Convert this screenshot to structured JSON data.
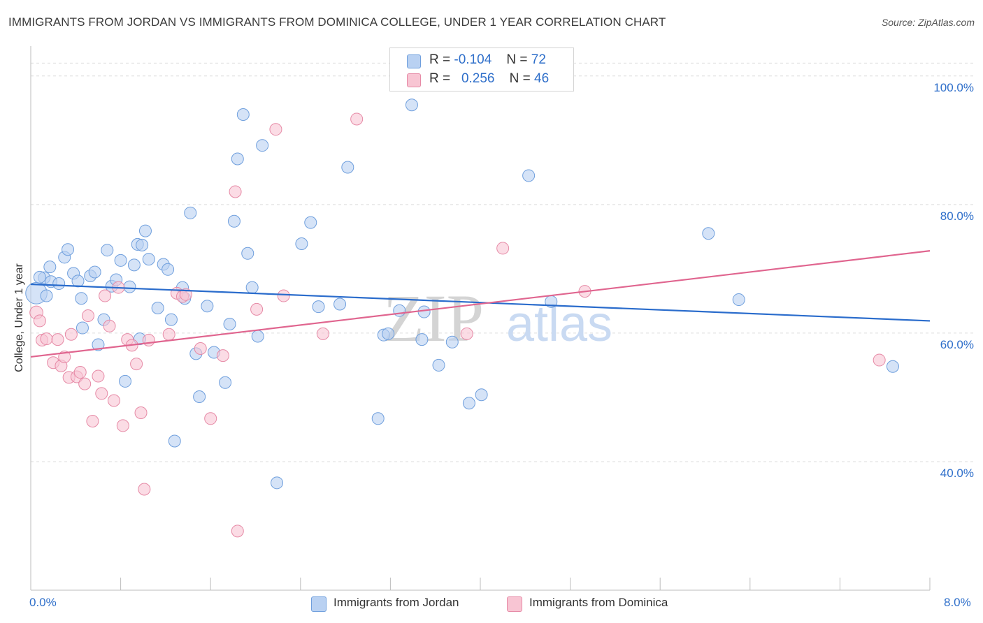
{
  "header": {
    "title": "IMMIGRANTS FROM JORDAN VS IMMIGRANTS FROM DOMINICA COLLEGE, UNDER 1 YEAR CORRELATION CHART",
    "source": "Source: ZipAtlas.com"
  },
  "legend_top": {
    "rows": [
      {
        "r_label": "R =",
        "r_value": "-0.104",
        "n_label": "N =",
        "n_value": "72"
      },
      {
        "r_label": "R =",
        "r_value": "0.256",
        "n_label": "N =",
        "n_value": "46"
      }
    ]
  },
  "watermark": {
    "zip": "ZIP",
    "atlas": "atlas"
  },
  "colors": {
    "jordan_fill": "#b9d1f2",
    "jordan_stroke": "#6f9fdd",
    "jordan_line": "#2a6ccc",
    "dominica_fill": "#f8c5d3",
    "dominica_stroke": "#e68aa6",
    "dominica_line": "#e0658f",
    "axis_label": "#2f6fca",
    "grid": "#dcdcdc"
  },
  "chart_data": {
    "type": "scatter",
    "title": "IMMIGRANTS FROM JORDAN VS IMMIGRANTS FROM DOMINICA COLLEGE, UNDER 1 YEAR CORRELATION CHART",
    "xlabel": "",
    "ylabel": "College, Under 1 year",
    "xlim": [
      0,
      8
    ],
    "ylim": [
      20,
      104
    ],
    "x_tick_labels": [
      "0.0%",
      "8.0%"
    ],
    "y_ticks": [
      40,
      60,
      80,
      100
    ],
    "y_tick_labels": [
      "40.0%",
      "60.0%",
      "80.0%",
      "100.0%"
    ],
    "grid": true,
    "legend_position": "bottom",
    "series": [
      {
        "name": "Immigrants from Jordan",
        "trend": [
          [
            0,
            67.6
          ],
          [
            8,
            61.9
          ]
        ],
        "points": [
          [
            0.05,
            66.2,
            1.8
          ],
          [
            0.12,
            68.6,
            1
          ],
          [
            0.17,
            70.3,
            1
          ],
          [
            0.18,
            68.0,
            1
          ],
          [
            0.25,
            67.7,
            1
          ],
          [
            0.3,
            71.8,
            1
          ],
          [
            0.33,
            73.0,
            1
          ],
          [
            0.38,
            69.3,
            1
          ],
          [
            0.42,
            68.1,
            1
          ],
          [
            0.45,
            65.4,
            1
          ],
          [
            0.46,
            60.8,
            1
          ],
          [
            0.53,
            68.9,
            1
          ],
          [
            0.57,
            69.5,
            1
          ],
          [
            0.6,
            58.2,
            1
          ],
          [
            0.65,
            62.1,
            1
          ],
          [
            0.68,
            72.9,
            1
          ],
          [
            0.72,
            67.3,
            1
          ],
          [
            0.76,
            68.3,
            1
          ],
          [
            0.8,
            71.3,
            1
          ],
          [
            0.84,
            52.5,
            1
          ],
          [
            0.88,
            67.2,
            1
          ],
          [
            0.92,
            70.6,
            1
          ],
          [
            0.95,
            73.8,
            1
          ],
          [
            0.97,
            59.1,
            1
          ],
          [
            0.99,
            73.7,
            1
          ],
          [
            1.02,
            75.9,
            1
          ],
          [
            1.05,
            71.5,
            1
          ],
          [
            1.13,
            63.9,
            1
          ],
          [
            1.18,
            70.7,
            1
          ],
          [
            1.22,
            69.9,
            1
          ],
          [
            1.25,
            62.1,
            1
          ],
          [
            1.28,
            43.2,
            1
          ],
          [
            1.35,
            67.1,
            1
          ],
          [
            1.37,
            65.4,
            1
          ],
          [
            1.42,
            78.7,
            1
          ],
          [
            1.47,
            56.8,
            1
          ],
          [
            1.5,
            50.1,
            1
          ],
          [
            1.57,
            64.2,
            1
          ],
          [
            1.63,
            57.0,
            1
          ],
          [
            1.73,
            52.3,
            1
          ],
          [
            1.77,
            61.4,
            1
          ],
          [
            1.81,
            77.4,
            1
          ],
          [
            1.84,
            87.1,
            1
          ],
          [
            1.89,
            94.0,
            1
          ],
          [
            1.93,
            72.4,
            1
          ],
          [
            1.97,
            67.1,
            1
          ],
          [
            2.02,
            59.5,
            1
          ],
          [
            2.06,
            89.2,
            1
          ],
          [
            2.19,
            36.7,
            1
          ],
          [
            2.41,
            73.9,
            1
          ],
          [
            2.49,
            77.2,
            1
          ],
          [
            2.56,
            64.1,
            1
          ],
          [
            2.75,
            64.5,
            1
          ],
          [
            2.82,
            85.8,
            1
          ],
          [
            3.09,
            46.7,
            1
          ],
          [
            3.14,
            59.7,
            1
          ],
          [
            3.18,
            59.9,
            1
          ],
          [
            3.28,
            63.5,
            1
          ],
          [
            3.39,
            95.5,
            1
          ],
          [
            3.48,
            59.0,
            1
          ],
          [
            3.5,
            63.3,
            1
          ],
          [
            3.63,
            55.0,
            1
          ],
          [
            3.75,
            58.6,
            1
          ],
          [
            3.9,
            49.1,
            1
          ],
          [
            4.01,
            50.4,
            1
          ],
          [
            4.43,
            84.5,
            1
          ],
          [
            4.63,
            64.9,
            1
          ],
          [
            6.03,
            75.5,
            1
          ],
          [
            6.3,
            65.2,
            1
          ],
          [
            7.67,
            54.8,
            1
          ],
          [
            0.08,
            68.7,
            1
          ],
          [
            0.14,
            65.8,
            1
          ]
        ]
      },
      {
        "name": "Immigrants from Dominica",
        "trend": [
          [
            0,
            56.3
          ],
          [
            8,
            72.8
          ]
        ],
        "points": [
          [
            0.05,
            63.2,
            1.1
          ],
          [
            0.08,
            61.9,
            1
          ],
          [
            0.1,
            58.9,
            1
          ],
          [
            0.14,
            59.1,
            1
          ],
          [
            0.2,
            55.4,
            1
          ],
          [
            0.24,
            59.0,
            1
          ],
          [
            0.27,
            54.9,
            1
          ],
          [
            0.3,
            56.3,
            1
          ],
          [
            0.34,
            53.1,
            1
          ],
          [
            0.36,
            59.8,
            1
          ],
          [
            0.41,
            53.2,
            1
          ],
          [
            0.44,
            53.9,
            1
          ],
          [
            0.48,
            52.1,
            1
          ],
          [
            0.51,
            62.7,
            1
          ],
          [
            0.55,
            46.3,
            1
          ],
          [
            0.6,
            53.3,
            1
          ],
          [
            0.63,
            50.6,
            1
          ],
          [
            0.66,
            65.8,
            1
          ],
          [
            0.7,
            61.1,
            1
          ],
          [
            0.74,
            49.5,
            1
          ],
          [
            0.78,
            67.1,
            1
          ],
          [
            0.82,
            45.6,
            1
          ],
          [
            0.86,
            59.0,
            1
          ],
          [
            0.9,
            58.1,
            1
          ],
          [
            0.94,
            55.2,
            1
          ],
          [
            0.98,
            47.6,
            1
          ],
          [
            1.01,
            35.7,
            1
          ],
          [
            1.05,
            58.9,
            1
          ],
          [
            1.23,
            59.8,
            1
          ],
          [
            1.3,
            66.2,
            1
          ],
          [
            1.35,
            65.7,
            1
          ],
          [
            1.38,
            66.0,
            1
          ],
          [
            1.51,
            57.6,
            1
          ],
          [
            1.6,
            46.7,
            1
          ],
          [
            1.71,
            56.5,
            1
          ],
          [
            1.82,
            82.0,
            1
          ],
          [
            1.84,
            29.2,
            1
          ],
          [
            2.01,
            63.7,
            1
          ],
          [
            2.18,
            91.7,
            1
          ],
          [
            2.25,
            65.8,
            1
          ],
          [
            2.6,
            59.9,
            1
          ],
          [
            2.9,
            93.3,
            1
          ],
          [
            3.88,
            59.9,
            1
          ],
          [
            4.2,
            73.2,
            1
          ],
          [
            4.93,
            66.5,
            1
          ],
          [
            7.55,
            55.8,
            1
          ]
        ]
      }
    ]
  },
  "legend_bottom": {
    "jordan_label": "Immigrants from Jordan",
    "dominica_label": "Immigrants from Dominica"
  }
}
